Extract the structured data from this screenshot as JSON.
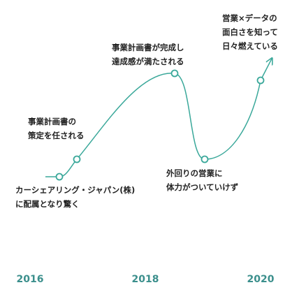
{
  "events": [
    {
      "lines": [
        "カーシェアリング・ジャパン(株)",
        "に配属となり驚く"
      ]
    },
    {
      "lines": [
        "事業計画書の",
        "策定を任される"
      ]
    },
    {
      "lines": [
        "事業計画書が完成し",
        "達成感が満たされる"
      ]
    },
    {
      "lines": [
        "外回りの営業に",
        "体力がついていけず"
      ]
    },
    {
      "lines": [
        "営業×データの",
        "面白さを知って",
        "日々燃えている"
      ]
    }
  ],
  "years": [
    "2016",
    "2018",
    "2020"
  ]
}
